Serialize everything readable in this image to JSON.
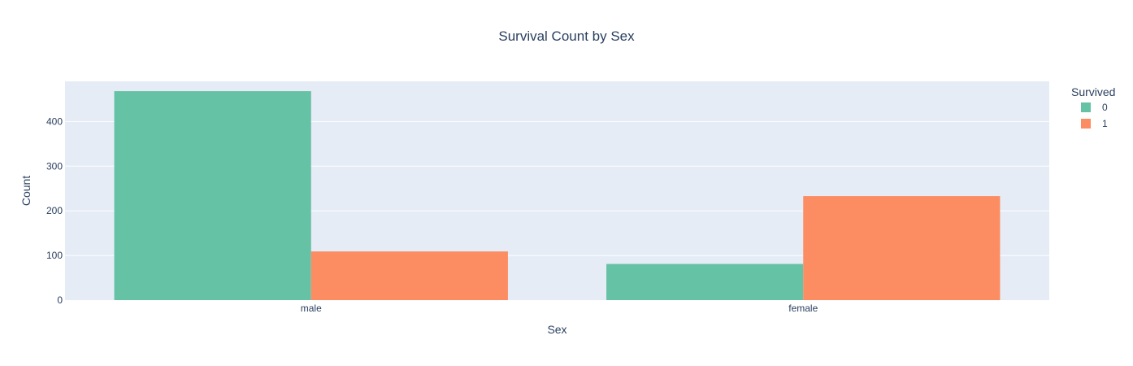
{
  "chart_data": {
    "type": "bar",
    "barmode": "group",
    "title": "Survival Count by Sex",
    "xlabel": "Sex",
    "ylabel": "Count",
    "categories": [
      "male",
      "female"
    ],
    "ylim": [
      0,
      490
    ],
    "yticks": [
      0,
      100,
      200,
      300,
      400
    ],
    "grid": true,
    "legend_title": "Survived",
    "legend_position": "top-right",
    "series": [
      {
        "name": "0",
        "values": [
          468,
          81
        ],
        "color": "#66c2a5"
      },
      {
        "name": "1",
        "values": [
          109,
          233
        ],
        "color": "#fc8d62"
      }
    ],
    "plot_background": "#e5ecf6"
  }
}
